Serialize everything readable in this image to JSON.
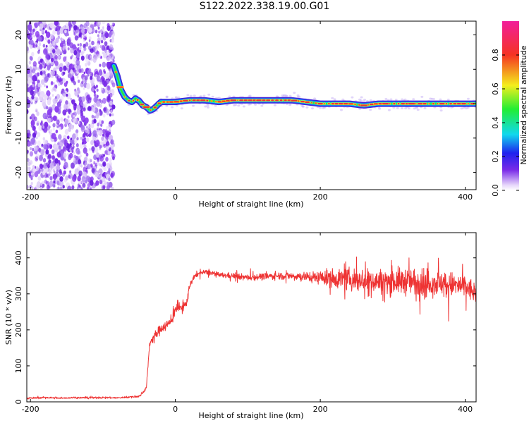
{
  "title": "S122.2022.338.19.00.G01",
  "colors": {
    "snr_line": "#ee3333",
    "ridge_core": "#ee3333",
    "scatter": "#7a2be8"
  },
  "chart_data": [
    {
      "type": "heatmap",
      "id": "spectrogram",
      "xlabel": "Height of straight line (km)",
      "ylabel": "Frequency (Hz)",
      "xlim": [
        -205,
        415
      ],
      "ylim": [
        -25,
        24
      ],
      "xticks": [
        "-200",
        "0",
        "200",
        "400"
      ],
      "xtick_values": [
        -200,
        0,
        200,
        400
      ],
      "yticks": [
        "-20",
        "-10",
        "0",
        "10",
        "20"
      ],
      "ytick_values": [
        -20,
        -10,
        0,
        10,
        20
      ],
      "grid": false,
      "colorbar": {
        "label": "Normalized spectral amplitude",
        "ticks": [
          "0.0",
          "0.2",
          "0.4",
          "0.6",
          "0.8"
        ],
        "tick_values": [
          0.0,
          0.2,
          0.4,
          0.6,
          0.8
        ],
        "range": [
          0,
          1
        ],
        "colormap": "rainbow (purple-blue-cyan-green-yellow-red-magenta)"
      },
      "ridge": {
        "x": [
          -85,
          -80,
          -75,
          -70,
          -65,
          -60,
          -55,
          -50,
          -45,
          -40,
          -35,
          -30,
          -25,
          -20,
          -10,
          0,
          20,
          40,
          60,
          80,
          100,
          120,
          140,
          160,
          180,
          200,
          220,
          240,
          260,
          280,
          300,
          320,
          340,
          360,
          380,
          400,
          415
        ],
        "y": [
          11,
          8,
          4,
          2,
          1,
          0.5,
          1.5,
          0.8,
          -0.5,
          -1,
          -2,
          -1.5,
          -0.5,
          0.5,
          0.5,
          0.5,
          1,
          1,
          0.5,
          1,
          1,
          1,
          1,
          1,
          0.5,
          0,
          0,
          0,
          -0.5,
          0,
          0,
          0,
          0,
          0,
          0,
          0,
          0
        ]
      },
      "noise_region": {
        "x_range": [
          -205,
          -85
        ],
        "y_range": [
          -25,
          24
        ]
      }
    },
    {
      "type": "line",
      "id": "snr",
      "xlabel": "Height of straight line (km)",
      "ylabel": "SNR (10 * v/v)",
      "xlim": [
        -205,
        415
      ],
      "ylim": [
        0,
        470
      ],
      "xticks": [
        "-200",
        "0",
        "200",
        "400"
      ],
      "xtick_values": [
        -200,
        0,
        200,
        400
      ],
      "yticks": [
        "0",
        "100",
        "200",
        "300",
        "400"
      ],
      "ytick_values": [
        0,
        100,
        200,
        300,
        400
      ],
      "grid": false,
      "series": [
        {
          "x": [
            -205,
            -180,
            -160,
            -140,
            -120,
            -100,
            -80,
            -60,
            -50,
            -45,
            -40,
            -38,
            -36,
            -34,
            -30,
            -25,
            -20,
            -15,
            -10,
            -5,
            0,
            5,
            10,
            15,
            20,
            25,
            30,
            40,
            50,
            60,
            80,
            100,
            120,
            140,
            160,
            180,
            200,
            220,
            240,
            260,
            280,
            300,
            320,
            340,
            360,
            380,
            400,
            415
          ],
          "y": [
            10,
            12,
            10,
            12,
            11,
            12,
            11,
            14,
            15,
            25,
            40,
            90,
            150,
            170,
            180,
            190,
            205,
            210,
            215,
            225,
            260,
            260,
            265,
            270,
            325,
            345,
            355,
            360,
            358,
            352,
            350,
            345,
            348,
            350,
            350,
            348,
            345,
            343,
            340,
            338,
            335,
            335,
            335,
            333,
            330,
            325,
            320,
            300
          ],
          "spread": [
            4,
            4,
            4,
            4,
            4,
            4,
            4,
            4,
            5,
            6,
            8,
            12,
            18,
            18,
            20,
            22,
            24,
            24,
            24,
            25,
            26,
            24,
            22,
            22,
            18,
            14,
            12,
            12,
            12,
            12,
            14,
            14,
            16,
            16,
            18,
            22,
            30,
            45,
            50,
            52,
            55,
            60,
            62,
            62,
            60,
            58,
            55,
            50
          ]
        }
      ]
    }
  ]
}
